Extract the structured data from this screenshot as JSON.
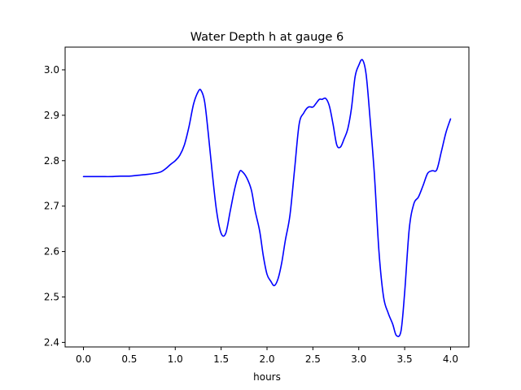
{
  "chart_data": {
    "type": "line",
    "title": "Water Depth h at gauge 6",
    "xlabel": "hours",
    "ylabel": "",
    "xlim": [
      -0.2,
      4.2
    ],
    "ylim": [
      2.39,
      3.05
    ],
    "xticks": [
      0.0,
      0.5,
      1.0,
      1.5,
      2.0,
      2.5,
      3.0,
      3.5,
      4.0
    ],
    "xtick_labels": [
      "0.0",
      "0.5",
      "1.0",
      "1.5",
      "2.0",
      "2.5",
      "3.0",
      "3.5",
      "4.0"
    ],
    "yticks": [
      2.4,
      2.5,
      2.6,
      2.7,
      2.8,
      2.9,
      3.0
    ],
    "ytick_labels": [
      "2.4",
      "2.5",
      "2.6",
      "2.7",
      "2.8",
      "2.9",
      "3.0"
    ],
    "grid": false,
    "series": [
      {
        "color": "#0000ff",
        "x": [
          0.0,
          0.1,
          0.2,
          0.3,
          0.4,
          0.5,
          0.6,
          0.7,
          0.8,
          0.85,
          0.9,
          0.95,
          1.0,
          1.05,
          1.1,
          1.15,
          1.2,
          1.25,
          1.28,
          1.32,
          1.36,
          1.4,
          1.45,
          1.5,
          1.55,
          1.6,
          1.65,
          1.7,
          1.73,
          1.78,
          1.83,
          1.87,
          1.92,
          1.96,
          2.0,
          2.04,
          2.08,
          2.12,
          2.16,
          2.2,
          2.25,
          2.3,
          2.35,
          2.4,
          2.45,
          2.5,
          2.53,
          2.57,
          2.6,
          2.64,
          2.68,
          2.72,
          2.76,
          2.8,
          2.84,
          2.88,
          2.92,
          2.96,
          3.0,
          3.04,
          3.08,
          3.12,
          3.17,
          3.22,
          3.27,
          3.32,
          3.37,
          3.41,
          3.46,
          3.5,
          3.55,
          3.6,
          3.65,
          3.7,
          3.75,
          3.8,
          3.85,
          3.9,
          3.95,
          4.0
        ],
        "y": [
          2.765,
          2.765,
          2.765,
          2.765,
          2.766,
          2.766,
          2.768,
          2.77,
          2.773,
          2.776,
          2.783,
          2.792,
          2.8,
          2.812,
          2.835,
          2.875,
          2.925,
          2.952,
          2.955,
          2.93,
          2.86,
          2.78,
          2.69,
          2.64,
          2.64,
          2.69,
          2.74,
          2.775,
          2.776,
          2.762,
          2.735,
          2.69,
          2.645,
          2.59,
          2.55,
          2.535,
          2.525,
          2.54,
          2.575,
          2.625,
          2.68,
          2.78,
          2.88,
          2.905,
          2.918,
          2.918,
          2.925,
          2.935,
          2.935,
          2.937,
          2.92,
          2.88,
          2.835,
          2.83,
          2.848,
          2.87,
          2.915,
          2.985,
          3.01,
          3.022,
          2.99,
          2.9,
          2.77,
          2.6,
          2.5,
          2.465,
          2.44,
          2.415,
          2.425,
          2.51,
          2.65,
          2.705,
          2.72,
          2.745,
          2.772,
          2.778,
          2.78,
          2.82,
          2.862,
          2.892
        ]
      }
    ]
  }
}
